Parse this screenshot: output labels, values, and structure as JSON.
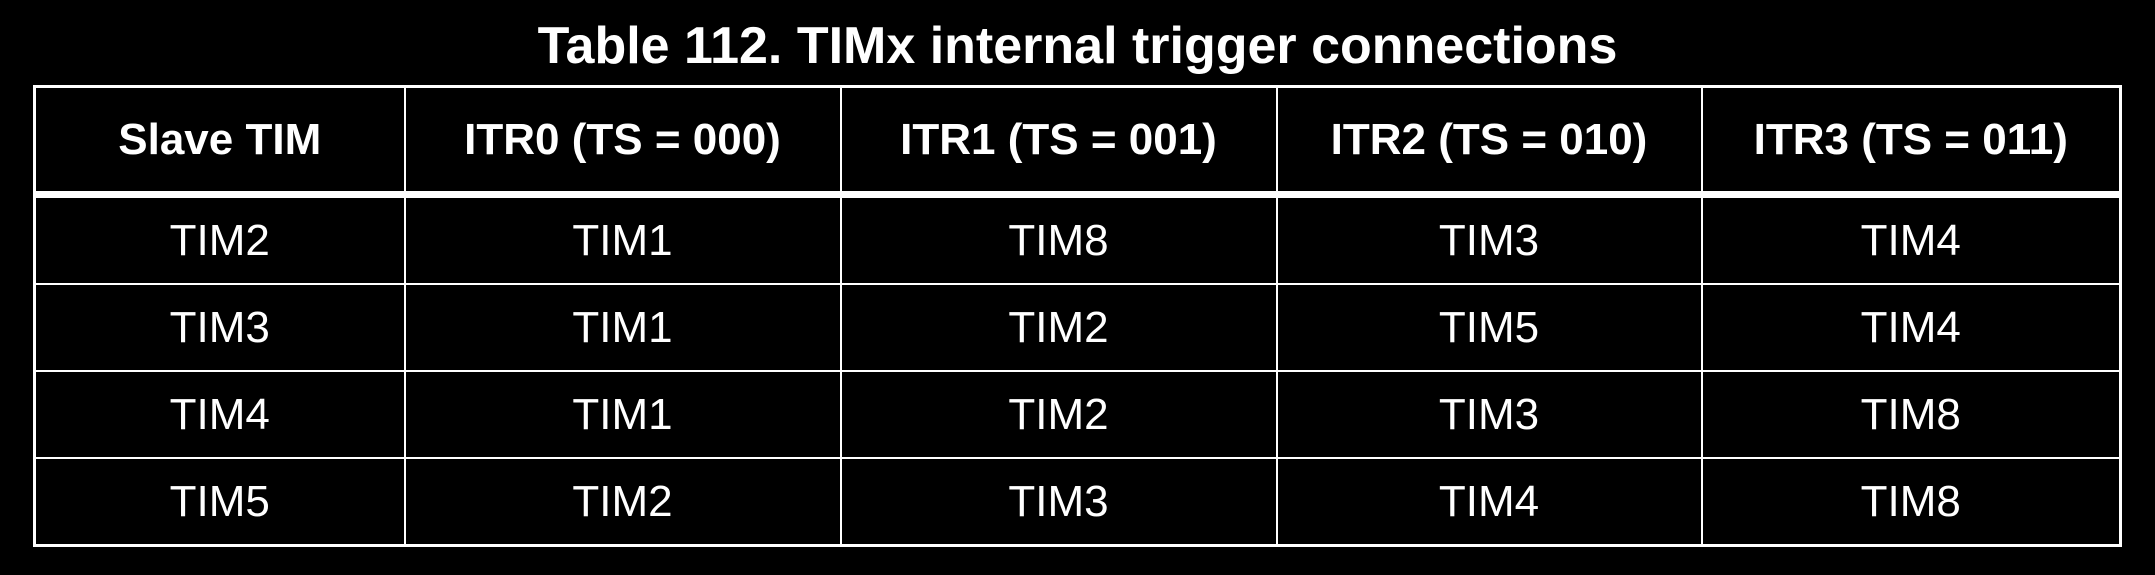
{
  "caption": "Table 112. TIMx internal trigger connections",
  "table": {
    "headers": [
      "Slave TIM",
      "ITR0 (TS = 000)",
      "ITR1 (TS = 001)",
      "ITR2 (TS = 010)",
      "ITR3 (TS = 011)"
    ],
    "rows": [
      [
        "TIM2",
        "TIM1",
        "TIM8",
        "TIM3",
        "TIM4"
      ],
      [
        "TIM3",
        "TIM1",
        "TIM2",
        "TIM5",
        "TIM4"
      ],
      [
        "TIM4",
        "TIM1",
        "TIM2",
        "TIM3",
        "TIM8"
      ],
      [
        "TIM5",
        "TIM2",
        "TIM3",
        "TIM4",
        "TIM8"
      ]
    ]
  },
  "colors": {
    "background": "#000000",
    "text": "#ffffff",
    "border": "#ffffff"
  }
}
